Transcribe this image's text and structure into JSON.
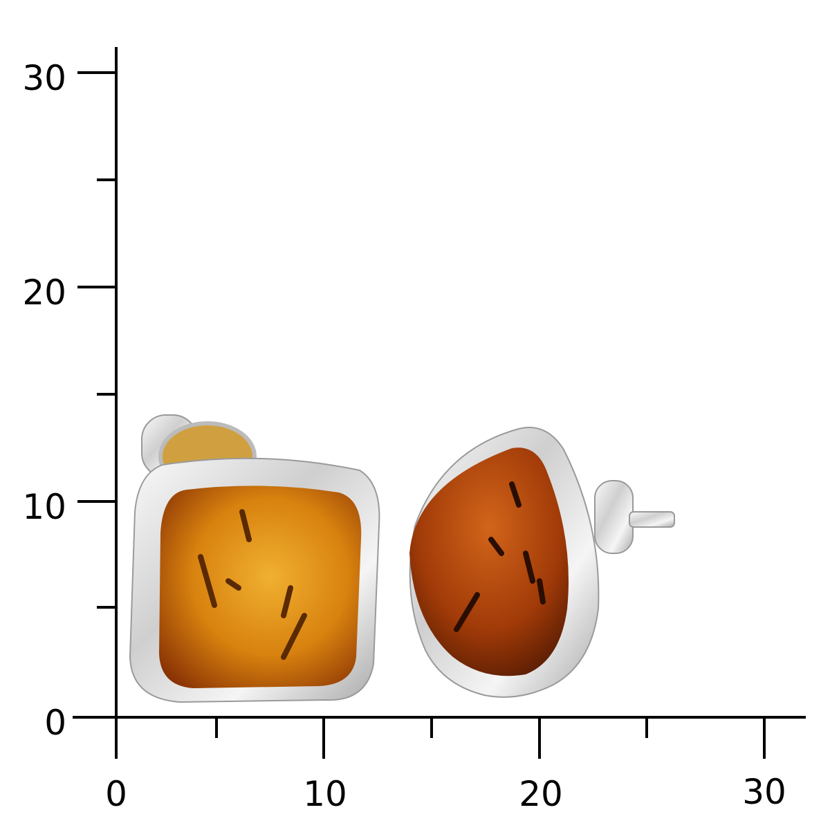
{
  "scale": {
    "y_ticks": [
      "0",
      "10",
      "20",
      "30"
    ],
    "x_ticks": [
      "0",
      "10",
      "20",
      "30"
    ],
    "axis_color": "#000000"
  },
  "product": {
    "items": [
      "amber-stud-earring-left",
      "amber-stud-earring-right"
    ],
    "amber_color": "#c0600e",
    "silver_color": "#e6e6e6"
  }
}
